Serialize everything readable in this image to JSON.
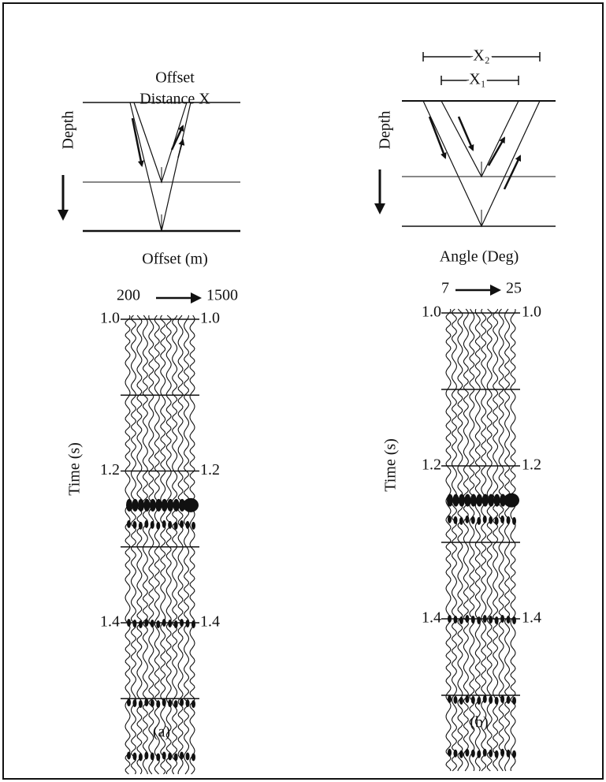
{
  "panels": [
    {
      "header": [
        "Offset",
        "Distance X"
      ],
      "depth_label": "Depth",
      "axis_label": "Offset (m)",
      "range": [
        200,
        1500
      ],
      "time_label": "Time (s)",
      "time_ticks": [
        {
          "value": 1.0,
          "label": "1.0"
        },
        {
          "value": 1.2,
          "label": "1.2"
        },
        {
          "value": 1.4,
          "label": "1.4"
        }
      ],
      "caption": "(a)"
    },
    {
      "header": [
        "X₂",
        "X₁"
      ],
      "depth_label": "Depth",
      "axis_label": "Angle (Deg)",
      "range": [
        7,
        25
      ],
      "time_label": "Time (s)",
      "time_ticks": [
        {
          "value": 1.0,
          "label": "1.0"
        },
        {
          "value": 1.2,
          "label": "1.2"
        },
        {
          "value": 1.4,
          "label": "1.4"
        }
      ],
      "caption": "(b)"
    }
  ]
}
